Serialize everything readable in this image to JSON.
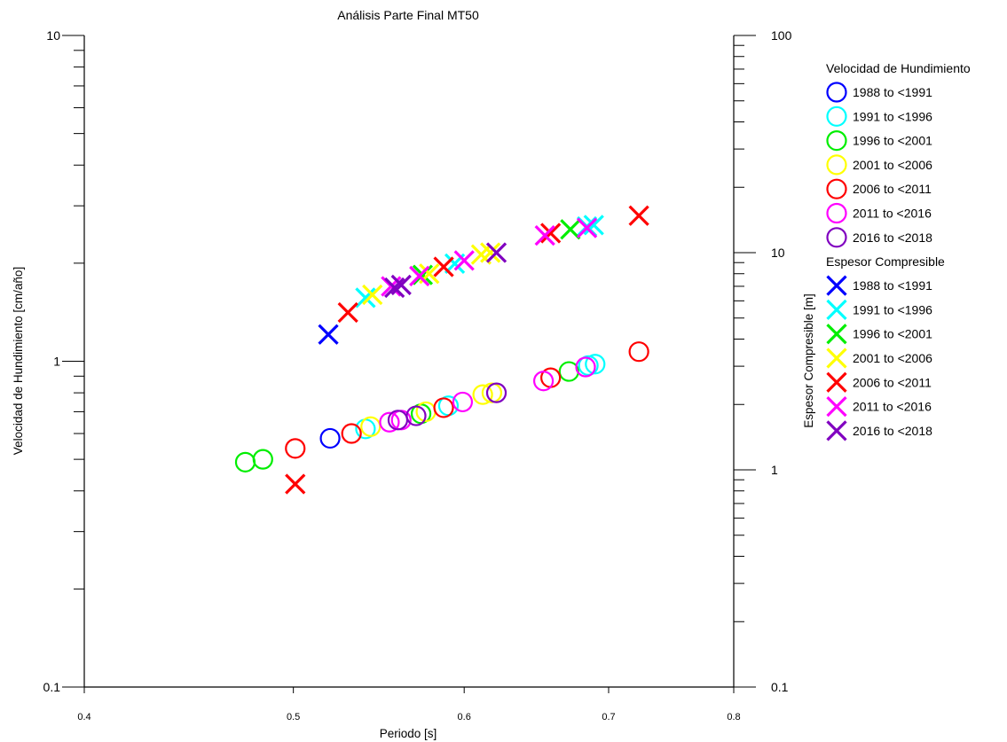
{
  "chart_data": {
    "type": "scatter",
    "title": "Análisis Parte Final MT50",
    "xlabel": "Periodo [s]",
    "ylabel": "Velocidad de Hundimiento [cm/año]",
    "y2label": "Espesor Compresible [m]",
    "x_scale": "log",
    "y_scale": "log",
    "y2_scale": "log",
    "xlim": [
      0.4,
      0.8
    ],
    "ylim": [
      0.1,
      10
    ],
    "y2lim": [
      0.1,
      100
    ],
    "x_ticks": [
      0.4,
      0.5,
      0.6,
      0.7,
      0.8
    ],
    "x_tick_labels": [
      "0.4",
      "0.5",
      "0.6",
      "0.7",
      "0.8"
    ],
    "y_major_ticks": [
      0.1,
      1,
      10
    ],
    "y_tick_labels": [
      "0.1",
      "1",
      "10"
    ],
    "y2_major_ticks": [
      0.1,
      1,
      10,
      100
    ],
    "y2_tick_labels": [
      "0.1",
      "1",
      "10",
      "100"
    ],
    "grid": false,
    "legend_position": "right",
    "legend_groups": [
      {
        "title": "Velocidad de Hundimiento",
        "marker": "circle",
        "entries": [
          {
            "label": "1988 to <1991",
            "color": "#0000ff"
          },
          {
            "label": "1991 to <1996",
            "color": "#00ffff"
          },
          {
            "label": "1996 to <2001",
            "color": "#00ee00"
          },
          {
            "label": "2001 to <2006",
            "color": "#ffff00"
          },
          {
            "label": "2006 to <2011",
            "color": "#ff0000"
          },
          {
            "label": "2011 to <2016",
            "color": "#ff00ff"
          },
          {
            "label": "2016 to <2018",
            "color": "#8000c0"
          }
        ]
      },
      {
        "title": "Espesor Compresible",
        "marker": "cross",
        "entries": [
          {
            "label": "1988 to <1991",
            "color": "#0000ff"
          },
          {
            "label": "1991 to <1996",
            "color": "#00ffff"
          },
          {
            "label": "1996 to <2001",
            "color": "#00ee00"
          },
          {
            "label": "2001 to <2006",
            "color": "#ffff00"
          },
          {
            "label": "2006 to <2011",
            "color": "#ff0000"
          },
          {
            "label": "2011 to <2016",
            "color": "#ff00ff"
          },
          {
            "label": "2016 to <2018",
            "color": "#8000c0"
          }
        ]
      }
    ],
    "series": [
      {
        "group": "Velocidad de Hundimiento",
        "axis": "left",
        "marker": "circle",
        "color": "#0000ff",
        "points": [
          [
            0.52,
            0.58
          ]
        ]
      },
      {
        "group": "Velocidad de Hundimiento",
        "axis": "left",
        "marker": "circle",
        "color": "#00ffff",
        "points": [
          [
            0.54,
            0.62
          ],
          [
            0.59,
            0.73
          ],
          [
            0.685,
            0.97
          ],
          [
            0.69,
            0.98
          ]
        ]
      },
      {
        "group": "Velocidad de Hundimiento",
        "axis": "left",
        "marker": "circle",
        "color": "#00ee00",
        "points": [
          [
            0.475,
            0.49
          ],
          [
            0.484,
            0.5
          ],
          [
            0.573,
            0.69
          ],
          [
            0.671,
            0.93
          ]
        ]
      },
      {
        "group": "Velocidad de Hundimiento",
        "axis": "left",
        "marker": "circle",
        "color": "#ffff00",
        "points": [
          [
            0.543,
            0.63
          ],
          [
            0.576,
            0.7
          ],
          [
            0.612,
            0.79
          ],
          [
            0.618,
            0.8
          ]
        ]
      },
      {
        "group": "Velocidad de Hundimiento",
        "axis": "left",
        "marker": "circle",
        "color": "#ff0000",
        "points": [
          [
            0.501,
            0.54
          ],
          [
            0.532,
            0.6
          ],
          [
            0.587,
            0.72
          ],
          [
            0.658,
            0.89
          ],
          [
            0.723,
            1.07
          ]
        ]
      },
      {
        "group": "Velocidad de Hundimiento",
        "axis": "left",
        "marker": "circle",
        "color": "#ff00ff",
        "points": [
          [
            0.554,
            0.65
          ],
          [
            0.561,
            0.66
          ],
          [
            0.599,
            0.75
          ],
          [
            0.653,
            0.87
          ],
          [
            0.683,
            0.96
          ]
        ]
      },
      {
        "group": "Velocidad de Hundimiento",
        "axis": "left",
        "marker": "circle",
        "color": "#8000c0",
        "points": [
          [
            0.559,
            0.66
          ],
          [
            0.57,
            0.68
          ],
          [
            0.621,
            0.8
          ]
        ]
      },
      {
        "group": "Espesor Compresible",
        "axis": "right",
        "marker": "cross",
        "color": "#0000ff",
        "points": [
          [
            0.519,
            4.2
          ]
        ]
      },
      {
        "group": "Espesor Compresible",
        "axis": "right",
        "marker": "cross",
        "color": "#00ffff",
        "points": [
          [
            0.54,
            6.2
          ],
          [
            0.594,
            8.9
          ],
          [
            0.684,
            13.2
          ],
          [
            0.689,
            13.4
          ]
        ]
      },
      {
        "group": "Espesor Compresible",
        "axis": "right",
        "marker": "cross",
        "color": "#00ee00",
        "points": [
          [
            0.574,
            7.9
          ],
          [
            0.672,
            12.8
          ]
        ]
      },
      {
        "group": "Espesor Compresible",
        "axis": "right",
        "marker": "cross",
        "color": "#ffff00",
        "points": [
          [
            0.544,
            6.4
          ],
          [
            0.578,
            8.0
          ],
          [
            0.611,
            9.8
          ],
          [
            0.617,
            10.0
          ]
        ]
      },
      {
        "group": "Espesor Compresible",
        "axis": "right",
        "marker": "cross",
        "color": "#ff0000",
        "points": [
          [
            0.501,
            0.86
          ],
          [
            0.53,
            5.3
          ],
          [
            0.587,
            8.6
          ],
          [
            0.658,
            12.3
          ],
          [
            0.723,
            14.8
          ]
        ]
      },
      {
        "group": "Espesor Compresible",
        "axis": "right",
        "marker": "cross",
        "color": "#ff00ff",
        "points": [
          [
            0.555,
            7.0
          ],
          [
            0.572,
            7.8
          ],
          [
            0.6,
            9.2
          ],
          [
            0.654,
            12.0
          ],
          [
            0.684,
            13.0
          ]
        ]
      },
      {
        "group": "Espesor Compresible",
        "axis": "right",
        "marker": "cross",
        "color": "#8000c0",
        "points": [
          [
            0.557,
            6.9
          ],
          [
            0.561,
            7.1
          ],
          [
            0.621,
            10.0
          ]
        ]
      }
    ]
  }
}
